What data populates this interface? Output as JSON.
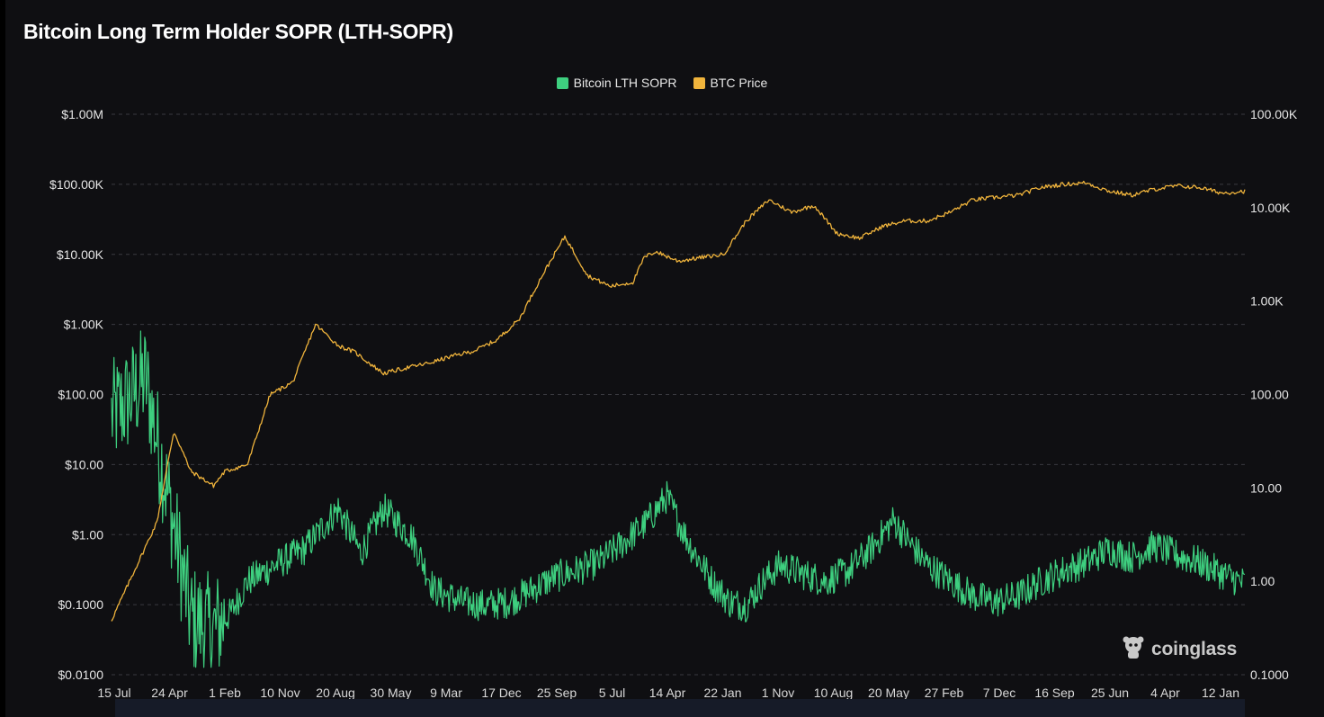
{
  "title": "Bitcoin Long Term Holder SOPR (LTH-SOPR)",
  "watermark": {
    "text": "coinglass",
    "icon": "coinglass-logo-icon"
  },
  "colors": {
    "sopr": "#3ecf7f",
    "price": "#f0b43c",
    "background": "#0f0f12",
    "grid": "#3a3a40"
  },
  "chart_data": {
    "type": "line",
    "title": "Bitcoin Long Term Holder SOPR (LTH-SOPR)",
    "legend_position": "top-center",
    "grid": true,
    "x_tick_labels": [
      "15 Jul",
      "24 Apr",
      "1 Feb",
      "10 Nov",
      "20 Aug",
      "30 May",
      "9 Mar",
      "17 Dec",
      "25 Sep",
      "5 Jul",
      "14 Apr",
      "22 Jan",
      "1 Nov",
      "10 Aug",
      "20 May",
      "27 Feb",
      "7 Dec",
      "16 Sep",
      "25 Jun",
      "4 Apr",
      "12 Jan"
    ],
    "y_left": {
      "scale": "log",
      "range": [
        0.01,
        1000000
      ],
      "tick_labels": [
        "$1.00M",
        "$100.00K",
        "$10.00K",
        "$1.00K",
        "$100.00",
        "$10.00",
        "$1.00",
        "$0.1000",
        "$0.0100"
      ],
      "tick_values": [
        1000000,
        100000,
        10000,
        1000,
        100,
        10,
        1,
        0.1,
        0.01
      ]
    },
    "y_right": {
      "scale": "log",
      "range": [
        0.1,
        100000
      ],
      "tick_labels": [
        "100.00K",
        "10.00K",
        "1.00K",
        "100.00",
        "10.00",
        "1.00",
        "0.1000"
      ],
      "tick_values": [
        100000,
        10000,
        1000,
        100,
        10,
        1,
        0.1
      ]
    },
    "series": [
      {
        "name": "Bitcoin LTH SOPR",
        "axis": "right",
        "x": [
          0,
          0.012,
          0.03,
          0.05,
          0.07,
          0.09,
          0.105,
          0.12,
          0.145,
          0.17,
          0.2,
          0.22,
          0.24,
          0.265,
          0.285,
          0.31,
          0.33,
          0.35,
          0.37,
          0.39,
          0.41,
          0.43,
          0.45,
          0.47,
          0.49,
          0.51,
          0.53,
          0.545,
          0.56,
          0.575,
          0.59,
          0.61,
          0.63,
          0.65,
          0.67,
          0.69,
          0.705,
          0.72,
          0.74,
          0.76,
          0.78,
          0.8,
          0.82,
          0.84,
          0.86,
          0.88,
          0.9,
          0.92,
          0.94,
          0.96,
          0.98,
          1.0
        ],
        "values": [
          60,
          80,
          150,
          8,
          0.4,
          0.3,
          0.45,
          1.0,
          1.5,
          2.2,
          6,
          2,
          6,
          3,
          0.8,
          0.6,
          0.55,
          0.6,
          0.8,
          1.1,
          1.3,
          1.6,
          2.5,
          4,
          8,
          2.5,
          1.0,
          0.6,
          0.55,
          1.0,
          1.5,
          1.2,
          1.0,
          1.3,
          2.2,
          4.5,
          2.5,
          1.5,
          1.0,
          0.7,
          0.6,
          0.7,
          1.0,
          1.3,
          1.6,
          2.2,
          1.8,
          2.4,
          1.9,
          1.6,
          1.2,
          0.95
        ]
      },
      {
        "name": "BTC Price",
        "axis": "left",
        "x": [
          0,
          0.02,
          0.04,
          0.055,
          0.07,
          0.09,
          0.1,
          0.12,
          0.14,
          0.16,
          0.18,
          0.2,
          0.215,
          0.225,
          0.24,
          0.26,
          0.28,
          0.3,
          0.32,
          0.34,
          0.36,
          0.38,
          0.4,
          0.42,
          0.44,
          0.46,
          0.47,
          0.48,
          0.5,
          0.52,
          0.54,
          0.56,
          0.58,
          0.6,
          0.62,
          0.64,
          0.66,
          0.68,
          0.7,
          0.72,
          0.74,
          0.76,
          0.78,
          0.8,
          0.82,
          0.84,
          0.86,
          0.88,
          0.9,
          0.92,
          0.94,
          0.96,
          0.98,
          1.0
        ],
        "values": [
          0.06,
          0.3,
          1.5,
          30,
          8,
          5,
          8,
          10,
          100,
          150,
          1000,
          500,
          400,
          300,
          200,
          240,
          280,
          350,
          420,
          600,
          1200,
          5000,
          18000,
          5000,
          3500,
          4000,
          9000,
          11000,
          8000,
          9000,
          10000,
          30000,
          60000,
          40000,
          50000,
          20000,
          17000,
          25000,
          30000,
          30000,
          40000,
          60000,
          65000,
          70000,
          90000,
          100000,
          105000,
          80000,
          70000,
          85000,
          95000,
          90000,
          75000,
          80000
        ]
      }
    ]
  }
}
